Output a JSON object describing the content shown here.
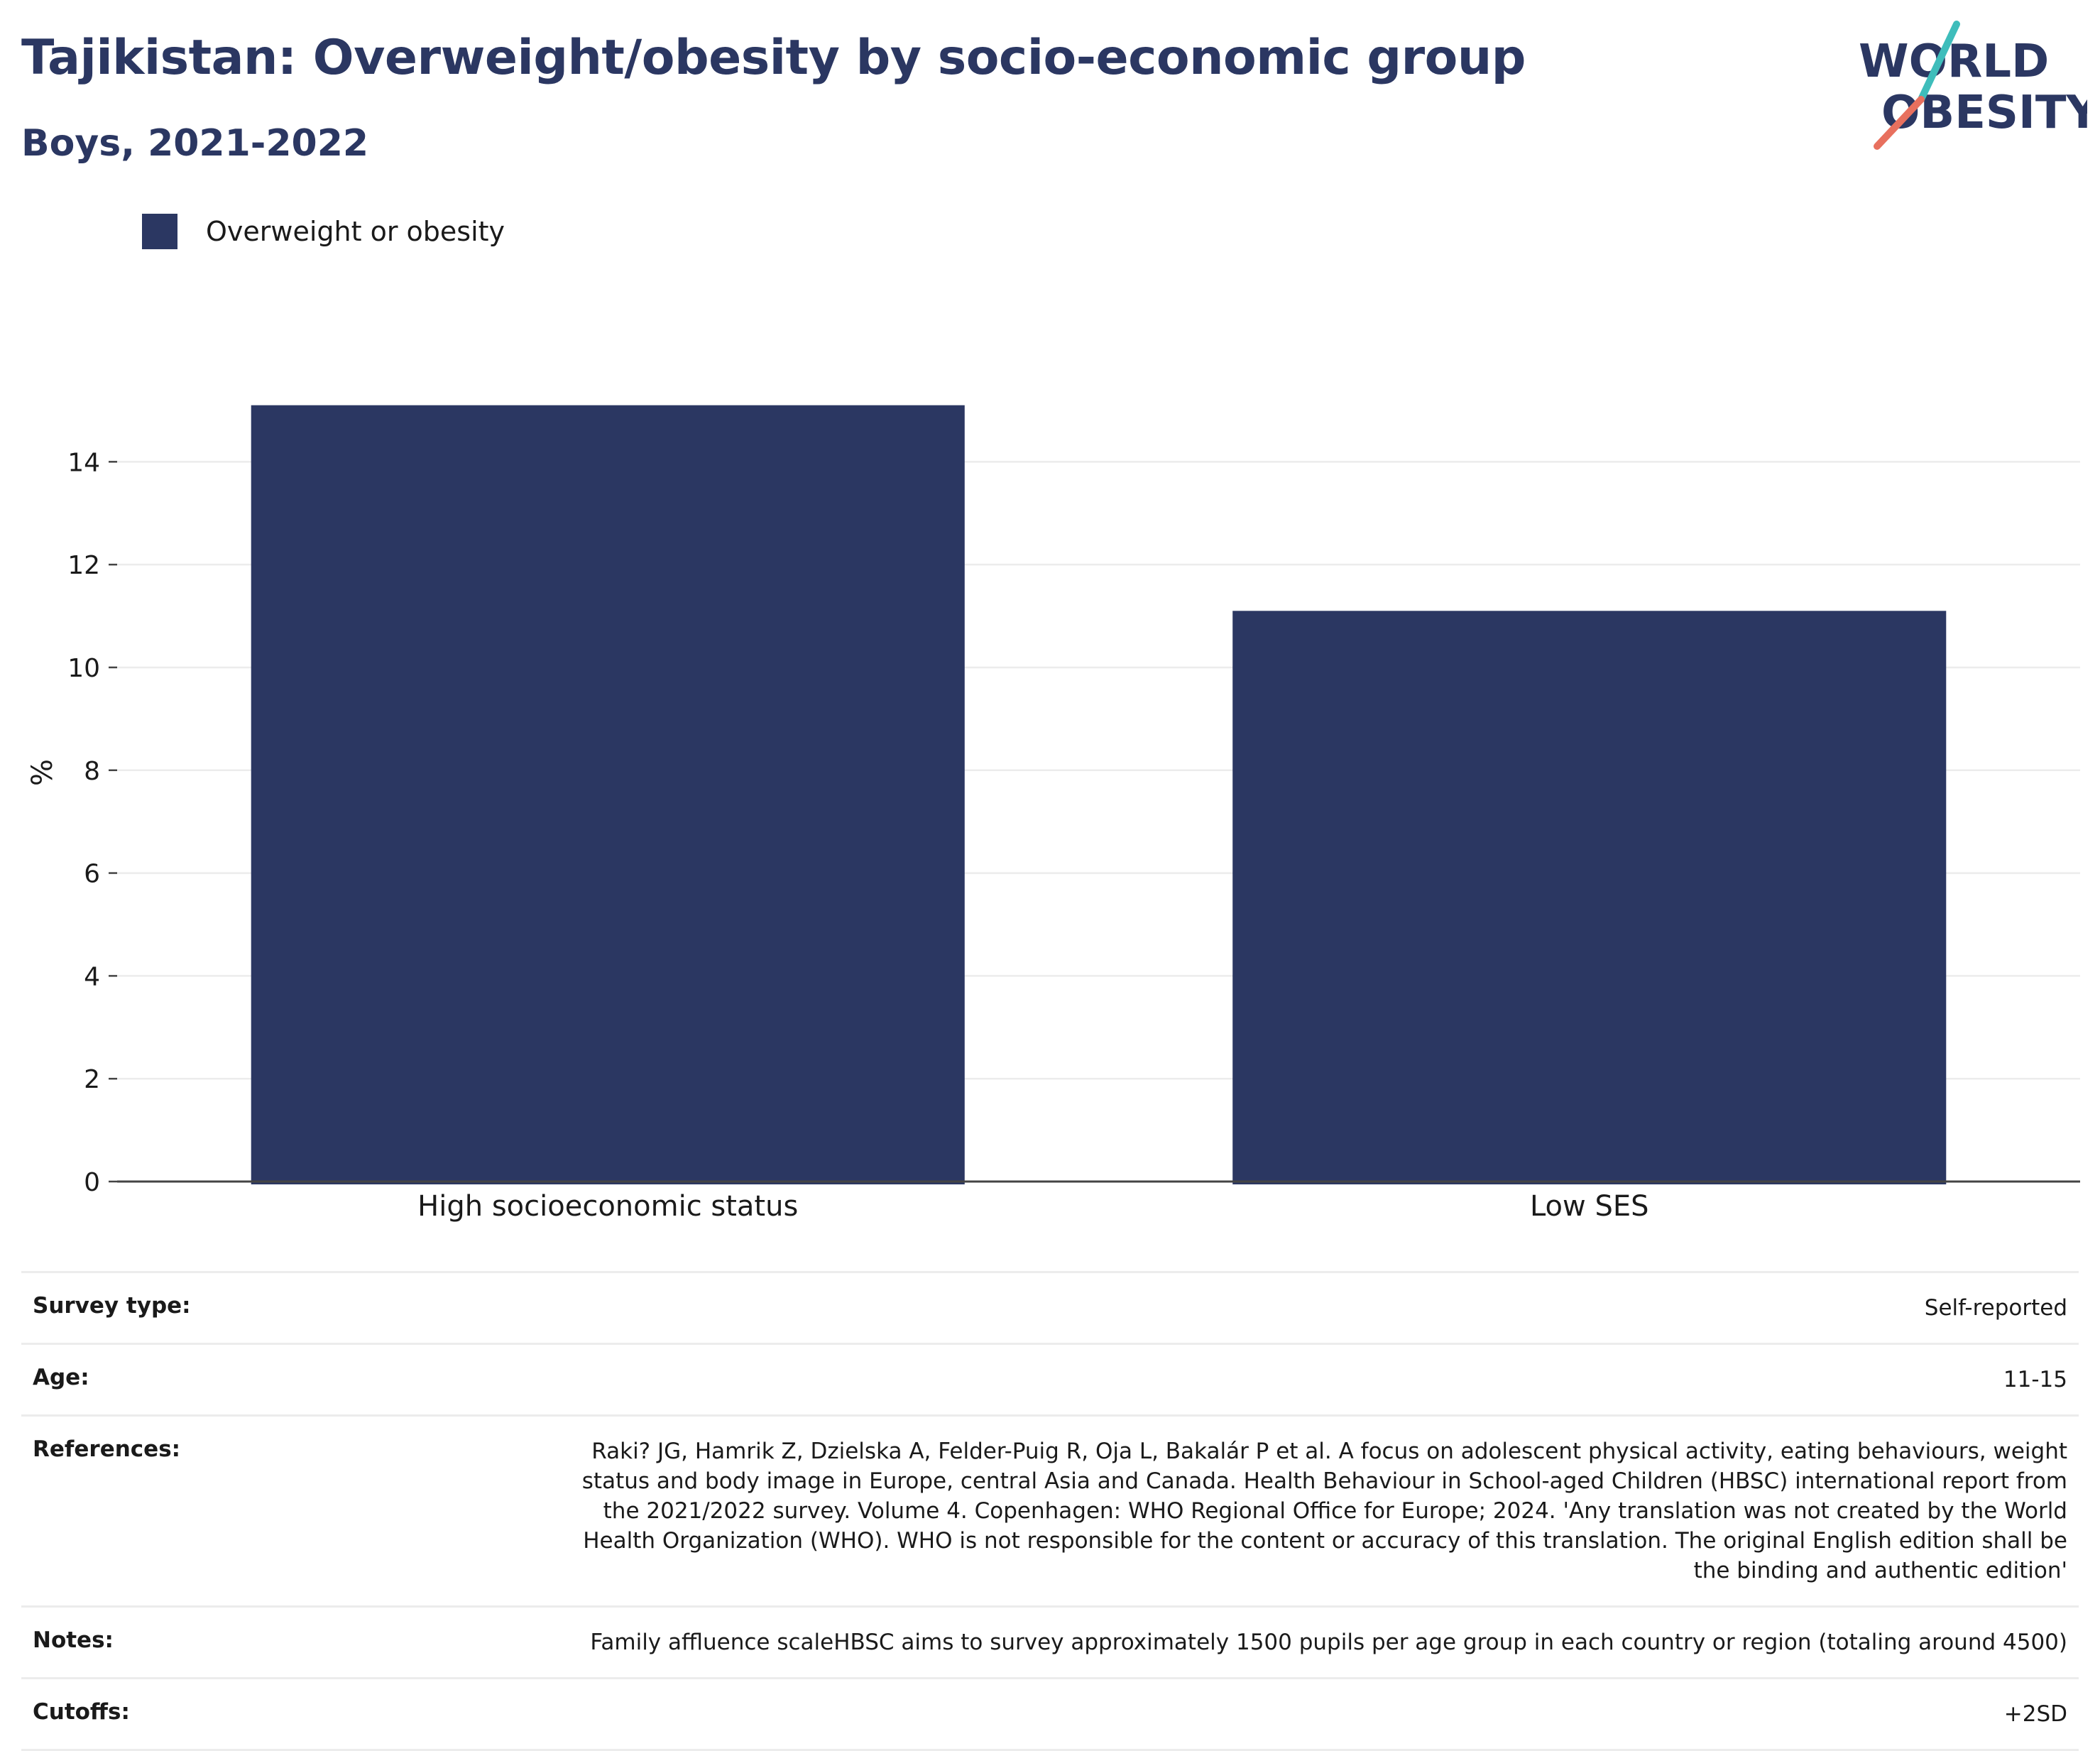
{
  "header": {
    "title": "Tajikistan: Overweight/obesity by socio-economic group",
    "subtitle": "Boys, 2021-2022",
    "logo_line1": "WORLD",
    "logo_line2": "OBESITY"
  },
  "colors": {
    "bar": "#2b3762",
    "logo_teal": "#3ebdbb",
    "logo_coral": "#e8705e",
    "grid": "#ececec",
    "axis": "#444444"
  },
  "chart_data": {
    "type": "bar",
    "categories": [
      "High socioeconomic status",
      "Low SES"
    ],
    "series": [
      {
        "name": "Overweight or obesity",
        "values": [
          15.1,
          11.1
        ]
      }
    ],
    "xlabel": "",
    "ylabel": "%",
    "ylim": [
      0,
      15.8
    ],
    "yticks": [
      0,
      2,
      4,
      6,
      8,
      10,
      12,
      14
    ],
    "grid": true,
    "legend_position": "top-left"
  },
  "meta": [
    {
      "key": "Survey type:",
      "value": "Self-reported"
    },
    {
      "key": "Age:",
      "value": "11-15"
    },
    {
      "key": "References:",
      "value": "Raki? JG, Hamrik Z, Dzielska A, Felder-Puig R, Oja L, Bakalár P et al. A focus on adolescent physical activity, eating behaviours, weight status and body image in Europe, central Asia and Canada. Health Behaviour in School-aged Children (HBSC) international report from the 2021/2022 survey. Volume 4. Copenhagen: WHO Regional Office for Europe; 2024. 'Any translation was not created by the World Health Organization (WHO). WHO is not responsible for the content or accuracy of this translation. The original English edition shall be the binding and authentic edition'"
    },
    {
      "key": "Notes:",
      "value": "Family affluence scaleHBSC aims to survey approximately 1500 pupils per age group in each country or region (totaling around 4500)"
    },
    {
      "key": "Cutoffs:",
      "value": "+2SD"
    }
  ]
}
